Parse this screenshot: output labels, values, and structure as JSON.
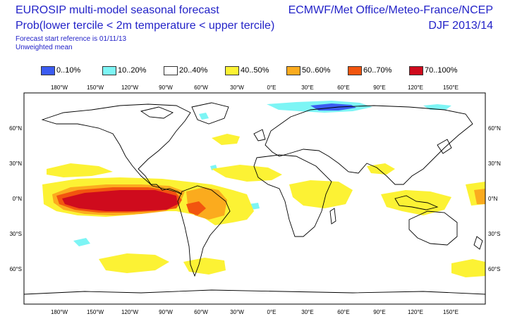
{
  "header": {
    "title_line1": "EUROSIP multi-model seasonal forecast",
    "title_line2": "Prob(lower tercile < 2m temperature < upper tercile)",
    "start_reference": "Forecast start reference is 01/11/13",
    "mean_type": "Unweighted mean",
    "centres": "ECMWF/Met Office/Meteo-France/NCEP",
    "season": "DJF 2013/14"
  },
  "legend": [
    {
      "label": "0..10%",
      "color": "#3b5cf2"
    },
    {
      "label": "10..20%",
      "color": "#7df5f5"
    },
    {
      "label": "20..40%",
      "color": "#ffffff"
    },
    {
      "label": "40..50%",
      "color": "#fcf234"
    },
    {
      "label": "50..60%",
      "color": "#fbab1e"
    },
    {
      "label": "60..70%",
      "color": "#f2550f"
    },
    {
      "label": "70..100%",
      "color": "#cf0b1d"
    }
  ],
  "axes": {
    "lon_labels": [
      "180°W",
      "150°W",
      "120°W",
      "90°W",
      "60°W",
      "30°W",
      "0°E",
      "30°E",
      "60°E",
      "90°E",
      "120°E",
      "150°E"
    ],
    "lat_labels": [
      "60°N",
      "30°N",
      "0°N",
      "30°S",
      "60°S"
    ]
  },
  "colors": {
    "title": "#2323c8",
    "land_outline": "#000000",
    "frame": "#000000"
  }
}
